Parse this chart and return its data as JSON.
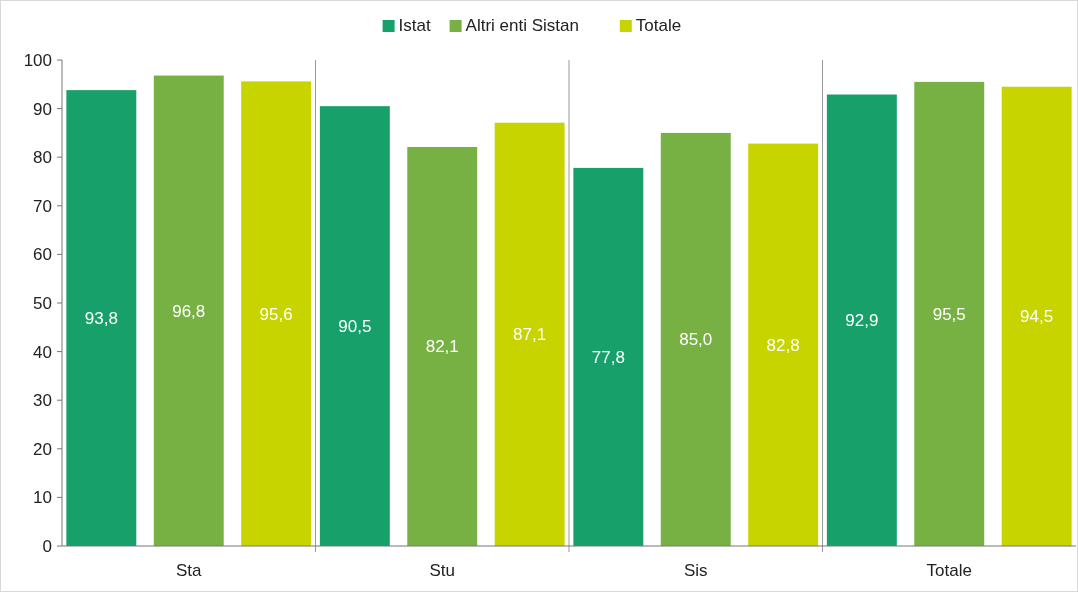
{
  "chart_data": {
    "type": "bar",
    "categories": [
      "Sta",
      "Stu",
      "Sis",
      "Totale"
    ],
    "series": [
      {
        "name": "Istat",
        "color": "#17a06a",
        "values": [
          93.8,
          90.5,
          77.8,
          92.9
        ],
        "value_labels": [
          "93,8",
          "90,5",
          "77,8",
          "92,9"
        ]
      },
      {
        "name": "Altri enti Sistan",
        "color": "#77b143",
        "values": [
          96.8,
          82.1,
          85.0,
          95.5
        ],
        "value_labels": [
          "96,8",
          "82,1",
          "85,0",
          "95,5"
        ]
      },
      {
        "name": "Totale",
        "color": "#c8d400",
        "values": [
          95.6,
          87.1,
          82.8,
          94.5
        ],
        "value_labels": [
          "95,6",
          "87,1",
          "82,8",
          "94,5"
        ]
      }
    ],
    "ylim": [
      0,
      100
    ],
    "yticks": [
      0,
      10,
      20,
      30,
      40,
      50,
      60,
      70,
      80,
      90,
      100
    ],
    "legend": "top",
    "grid": false
  }
}
